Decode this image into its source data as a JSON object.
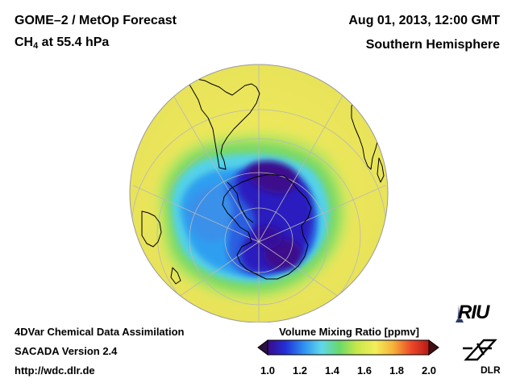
{
  "header": {
    "title": "GOME–2 / MetOp Forecast",
    "species_prefix": "CH",
    "species_subscript": "4",
    "species_suffix": " at 55.4 hPa",
    "datetime": "Aug 01, 2013, 12:00 GMT",
    "region": "Southern Hemisphere"
  },
  "footer": {
    "line1": "4DVar Chemical Data Assimilation",
    "line2": "SACADA Version 2.4",
    "line3": "http://wdc.dlr.de"
  },
  "colorbar": {
    "title": "Volume Mixing Ratio [ppmv]",
    "ticks": [
      "1.0",
      "1.2",
      "1.4",
      "1.6",
      "1.8",
      "2.0"
    ],
    "min": 1.0,
    "max": 2.0,
    "colors": [
      "#3a0a8a",
      "#2330d8",
      "#2f8ff0",
      "#5fd8ec",
      "#6ad86a",
      "#c8e84a",
      "#f2ee5a",
      "#f7b23a",
      "#ec4a2a",
      "#b81818"
    ]
  },
  "logos": {
    "riu": "RIU",
    "dlr": "DLR"
  },
  "colors": {
    "background": "#ffffff",
    "globe_background": "#eaea5e",
    "coastline": "#000000",
    "grid": "#b8b8b8"
  }
}
